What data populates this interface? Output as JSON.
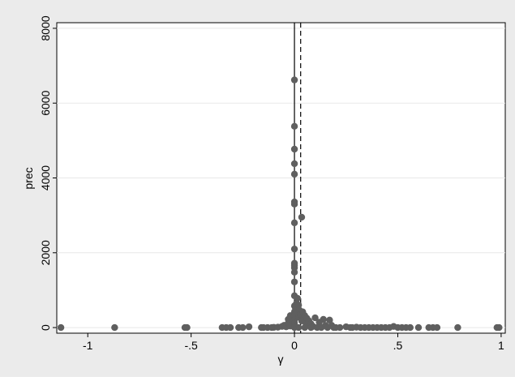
{
  "chart_data": {
    "type": "scatter",
    "title": "",
    "xlabel": "γ",
    "ylabel": "prec",
    "xlim": [
      -1.15,
      1.02
    ],
    "ylim": [
      -150,
      8150
    ],
    "xticks": [
      {
        "value": -1,
        "label": "-1"
      },
      {
        "value": -0.5,
        "label": "-.5"
      },
      {
        "value": 0,
        "label": "0"
      },
      {
        "value": 0.5,
        "label": ".5"
      },
      {
        "value": 1,
        "label": "1"
      }
    ],
    "yticks": [
      {
        "value": 0,
        "label": "0"
      },
      {
        "value": 2000,
        "label": "2000"
      },
      {
        "value": 4000,
        "label": "4000"
      },
      {
        "value": 6000,
        "label": "6000"
      },
      {
        "value": 8000,
        "label": "8000"
      }
    ],
    "grid": {
      "horizontal": true,
      "vertical": false
    },
    "reference_lines": [
      {
        "x": 0,
        "style": "solid"
      },
      {
        "x": 0.03,
        "style": "dashed"
      }
    ],
    "colors": {
      "marker": "#5f5f5f",
      "background": "#ebebeb",
      "plot_area": "#ffffff",
      "grid": "#e8e8e8"
    },
    "points": [
      [
        -1.13,
        0
      ],
      [
        -0.87,
        0
      ],
      [
        -0.53,
        0
      ],
      [
        -0.52,
        0
      ],
      [
        -0.35,
        0
      ],
      [
        -0.33,
        0
      ],
      [
        -0.31,
        0
      ],
      [
        -0.27,
        0
      ],
      [
        -0.25,
        0
      ],
      [
        -0.22,
        20
      ],
      [
        -0.16,
        0
      ],
      [
        -0.15,
        0
      ],
      [
        -0.13,
        0
      ],
      [
        -0.11,
        0
      ],
      [
        -0.1,
        5
      ],
      [
        -0.08,
        10
      ],
      [
        -0.06,
        30
      ],
      [
        -0.05,
        60
      ],
      [
        -0.04,
        20
      ],
      [
        -0.03,
        120
      ],
      [
        -0.03,
        220
      ],
      [
        -0.02,
        40
      ],
      [
        -0.02,
        320
      ],
      [
        -0.01,
        150
      ],
      [
        -0.01,
        80
      ],
      [
        0,
        6620
      ],
      [
        0,
        5380
      ],
      [
        0,
        4770
      ],
      [
        0,
        4380
      ],
      [
        0,
        4100
      ],
      [
        0,
        3360
      ],
      [
        0,
        3300
      ],
      [
        0,
        2800
      ],
      [
        0,
        2100
      ],
      [
        0,
        1720
      ],
      [
        0,
        1660
      ],
      [
        0,
        1600
      ],
      [
        0,
        1480
      ],
      [
        0,
        1220
      ],
      [
        0,
        850
      ],
      [
        0,
        580
      ],
      [
        0,
        420
      ],
      [
        0,
        300
      ],
      [
        0,
        200
      ],
      [
        0,
        120
      ],
      [
        0,
        60
      ],
      [
        0,
        0
      ],
      [
        0.005,
        520
      ],
      [
        0.01,
        650
      ],
      [
        0.01,
        400
      ],
      [
        0.015,
        780
      ],
      [
        0.02,
        600
      ],
      [
        0.02,
        280
      ],
      [
        0.025,
        460
      ],
      [
        0.03,
        350
      ],
      [
        0.035,
        2950
      ],
      [
        0.035,
        180
      ],
      [
        0.04,
        420
      ],
      [
        0.045,
        230
      ],
      [
        0.05,
        320
      ],
      [
        0.055,
        120
      ],
      [
        0.06,
        250
      ],
      [
        0.065,
        60
      ],
      [
        0.07,
        180
      ],
      [
        0.08,
        100
      ],
      [
        0.09,
        30
      ],
      [
        0.1,
        260
      ],
      [
        0.12,
        140
      ],
      [
        0.14,
        220
      ],
      [
        0.15,
        60
      ],
      [
        0.17,
        200
      ],
      [
        0.18,
        60
      ],
      [
        0.02,
        0
      ],
      [
        0.05,
        0
      ],
      [
        0.08,
        0
      ],
      [
        0.11,
        0
      ],
      [
        0.13,
        0
      ],
      [
        0.16,
        0
      ],
      [
        0.19,
        0
      ],
      [
        0.2,
        0
      ],
      [
        0.22,
        0
      ],
      [
        0.25,
        20
      ],
      [
        0.27,
        0
      ],
      [
        0.28,
        0
      ],
      [
        0.3,
        10
      ],
      [
        0.32,
        0
      ],
      [
        0.34,
        0
      ],
      [
        0.36,
        0
      ],
      [
        0.38,
        0
      ],
      [
        0.4,
        0
      ],
      [
        0.42,
        0
      ],
      [
        0.44,
        0
      ],
      [
        0.46,
        0
      ],
      [
        0.48,
        30
      ],
      [
        0.5,
        0
      ],
      [
        0.52,
        0
      ],
      [
        0.54,
        0
      ],
      [
        0.56,
        0
      ],
      [
        0.6,
        0
      ],
      [
        0.65,
        0
      ],
      [
        0.67,
        0
      ],
      [
        0.69,
        0
      ],
      [
        0.79,
        0
      ],
      [
        0.98,
        0
      ],
      [
        0.99,
        0
      ]
    ]
  }
}
